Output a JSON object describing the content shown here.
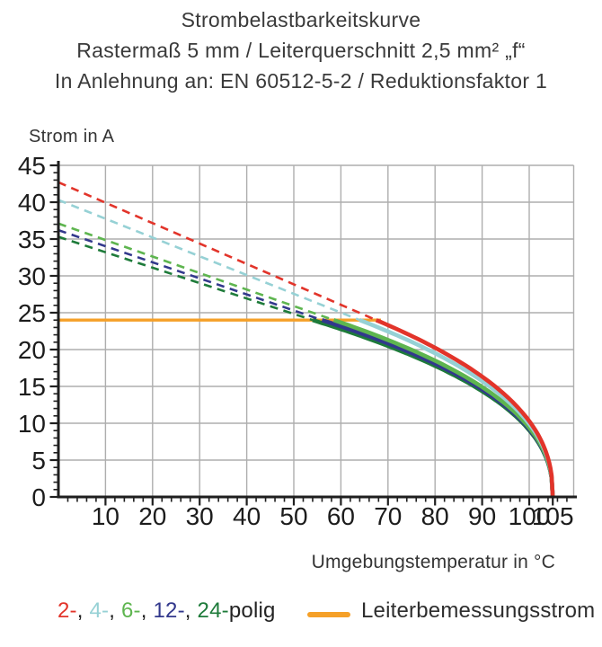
{
  "header": {
    "line1": "Strombelastbarkeitskurve",
    "line2": "Rastermaß 5 mm / Leiterquerschnitt 2,5 mm² „f“",
    "line3": "In Anlehnung an: EN 60512-5-2 / Reduktionsfaktor 1"
  },
  "chart_data": {
    "type": "line",
    "title": "Strombelastbarkeitskurve",
    "xlabel": "Umgebungstemperatur in °C",
    "ylabel": "Strom in A",
    "xlim": [
      0,
      109.5
    ],
    "ylim": [
      0,
      45
    ],
    "grid": "on",
    "x_major_ticks": [
      10,
      20,
      30,
      40,
      50,
      60,
      70,
      80,
      90,
      100,
      105
    ],
    "y_major_ticks": [
      0,
      5,
      10,
      15,
      20,
      25,
      30,
      35,
      40,
      45
    ],
    "x_minor_step": 2,
    "y_minor_step": 1,
    "limit_line": {
      "name": "Leiterbemessungsstrom",
      "value_A": 24,
      "x_start_C": 0,
      "x_end_C": 68.5,
      "color": "#f5a028"
    },
    "x": [
      0,
      10,
      20,
      30,
      40,
      50,
      60,
      70,
      80,
      90,
      100,
      105
    ],
    "series": [
      {
        "name": "2-polig",
        "color": "#e2342a",
        "style": "dashed-then-solid",
        "current_at_0C": 42.7,
        "meets_limit_at_C": 67.5,
        "zero_current_at_C": 105,
        "curve_exponent": 0.42,
        "values": [
          42.7,
          39.9,
          37.2,
          34.4,
          31.6,
          28.8,
          26.1,
          23.3,
          20.2,
          16.3,
          10.3,
          0
        ]
      },
      {
        "name": "4-polig",
        "color": "#96d1d5",
        "style": "dashed-then-solid",
        "current_at_0C": 40.3,
        "meets_limit_at_C": 64,
        "zero_current_at_C": 105,
        "curve_exponent": 0.42,
        "values": [
          40.3,
          37.8,
          35.2,
          32.7,
          30.1,
          27.6,
          25.0,
          22.5,
          19.5,
          15.7,
          9.9,
          0
        ]
      },
      {
        "name": "6-polig",
        "color": "#5eb54f",
        "style": "dashed-then-solid",
        "current_at_0C": 37.1,
        "meets_limit_at_C": 58.5,
        "zero_current_at_C": 105,
        "curve_exponent": 0.42,
        "values": [
          37.1,
          34.9,
          32.6,
          30.4,
          28.1,
          25.9,
          23.7,
          21.3,
          18.5,
          14.9,
          9.4,
          0
        ]
      },
      {
        "name": "12-polig",
        "color": "#32388c",
        "style": "dashed-then-solid",
        "current_at_0C": 36.2,
        "meets_limit_at_C": 56,
        "zero_current_at_C": 105,
        "curve_exponent": 0.42,
        "values": [
          36.2,
          34.0,
          31.8,
          29.7,
          27.5,
          25.3,
          23.2,
          20.8,
          18.1,
          14.6,
          9.2,
          0
        ]
      },
      {
        "name": "24-polig",
        "color": "#1e7b3a",
        "style": "dashed-then-solid",
        "current_at_0C": 35.3,
        "meets_limit_at_C": 54,
        "zero_current_at_C": 105,
        "curve_exponent": 0.42,
        "values": [
          35.3,
          33.2,
          31.1,
          29.0,
          26.9,
          24.8,
          22.8,
          20.5,
          17.8,
          14.4,
          9.1,
          0
        ]
      }
    ],
    "legend_position": "bottom"
  },
  "legend": {
    "pole_items": [
      {
        "label": "2-",
        "color": "#e2342a"
      },
      {
        "label": "4-",
        "color": "#96d1d5"
      },
      {
        "label": "6-",
        "color": "#5eb54f"
      },
      {
        "label": "12-",
        "color": "#32388c"
      },
      {
        "label": "24-",
        "color": "#1e7b3a"
      }
    ],
    "separator": ", ",
    "suffix": "polig",
    "limit": {
      "label": "Leiterbemessungsstrom",
      "color": "#f5a028"
    }
  },
  "colors": {
    "grid": "#aeaeae",
    "axis": "#1f1f1f"
  }
}
